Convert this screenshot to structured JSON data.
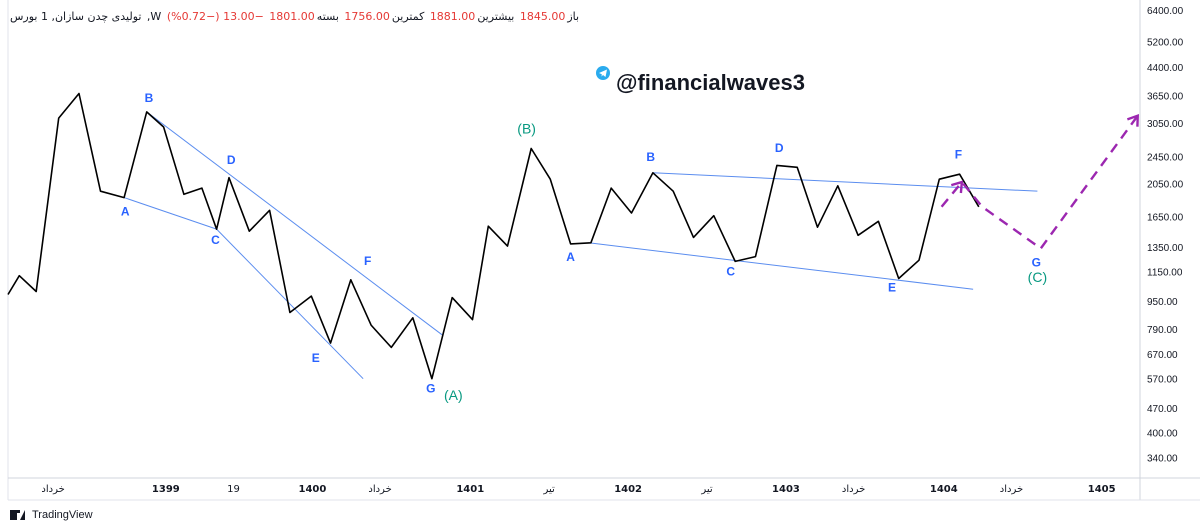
{
  "header": {
    "symbol": "تولیدی چدن سازان, 1",
    "exchange": "بورس ,W",
    "open_label": "باز",
    "open_value": "1845.00",
    "high_label": "بیشترین",
    "high_value": "1881.00",
    "low_label": "کمترین",
    "low_value": "1756.00",
    "close_label": "بسته",
    "close_value": "1801.00",
    "change": "−13.00 (−0.72%)"
  },
  "watermark": {
    "text": "@financialwaves3",
    "icon": "telegram-icon",
    "color": "#131722"
  },
  "footer": {
    "brand": "TradingView",
    "icon": "tradingview-logo-icon"
  },
  "colors": {
    "price_line": "#000000",
    "trendline": "#5b8def",
    "wave_label_blue": "#2962ff",
    "wave_label_green": "#089981",
    "projection": "#9c27b0",
    "axis_text": "#131722",
    "grid": "#f0f3fa"
  },
  "chart_data": {
    "type": "line",
    "scale": "log",
    "ylim": [
      300,
      6400
    ],
    "y_ticks": [
      340,
      400,
      470,
      570,
      670,
      790,
      950,
      1150,
      1350,
      1650,
      2050,
      2450,
      3050,
      3650,
      4400,
      5200,
      6400
    ],
    "y_tick_labels": [
      "340.00",
      "400.00",
      "470.00",
      "570.00",
      "670.00",
      "790.00",
      "950.00",
      "1150.00",
      "1350.00",
      "1650.00",
      "2050.00",
      "2450.00",
      "3050.00",
      "3650.00",
      "4400.00",
      "5200.00",
      "6400.00"
    ],
    "x_ticks": [
      {
        "label": "خرداد",
        "t": 4,
        "bold": false
      },
      {
        "label": "1399",
        "t": 14,
        "bold": true
      },
      {
        "label": "19",
        "t": 20,
        "bold": false
      },
      {
        "label": "1400",
        "t": 27,
        "bold": true
      },
      {
        "label": "خرداد",
        "t": 33,
        "bold": false
      },
      {
        "label": "1401",
        "t": 41,
        "bold": true
      },
      {
        "label": "تیر",
        "t": 48,
        "bold": false
      },
      {
        "label": "1402",
        "t": 55,
        "bold": true
      },
      {
        "label": "تیر",
        "t": 62,
        "bold": false
      },
      {
        "label": "1403",
        "t": 69,
        "bold": true
      },
      {
        "label": "خرداد",
        "t": 75,
        "bold": false
      },
      {
        "label": "1404",
        "t": 83,
        "bold": true
      },
      {
        "label": "خرداد",
        "t": 89,
        "bold": false
      },
      {
        "label": "1405",
        "t": 97,
        "bold": true
      }
    ],
    "series": [
      {
        "type": "line",
        "points": [
          [
            0,
            990
          ],
          [
            1,
            1120
          ],
          [
            2.5,
            1010
          ],
          [
            4.5,
            3150
          ],
          [
            6.3,
            3700
          ],
          [
            8.2,
            1950
          ],
          [
            10.3,
            1870
          ],
          [
            12.3,
            3280
          ],
          [
            13.8,
            2970
          ],
          [
            15.6,
            1910
          ],
          [
            17.2,
            1990
          ],
          [
            18.5,
            1520
          ],
          [
            19.6,
            2130
          ],
          [
            21.4,
            1500
          ],
          [
            23.2,
            1720
          ],
          [
            25,
            880
          ],
          [
            26.9,
            980
          ],
          [
            28.6,
            720
          ],
          [
            30.4,
            1090
          ],
          [
            32.2,
            810
          ],
          [
            34,
            700
          ],
          [
            35.9,
            850
          ],
          [
            37.6,
            570
          ],
          [
            39.4,
            970
          ],
          [
            41.2,
            840
          ],
          [
            42.6,
            1550
          ],
          [
            44.3,
            1360
          ],
          [
            46.4,
            2580
          ],
          [
            48.1,
            2110
          ],
          [
            49.9,
            1380
          ],
          [
            51.7,
            1390
          ],
          [
            53.5,
            1990
          ],
          [
            55.3,
            1690
          ],
          [
            57.2,
            2200
          ],
          [
            59,
            1950
          ],
          [
            60.8,
            1440
          ],
          [
            62.6,
            1660
          ],
          [
            64.5,
            1230
          ],
          [
            66.3,
            1270
          ],
          [
            68.2,
            2310
          ],
          [
            70,
            2280
          ],
          [
            71.8,
            1540
          ],
          [
            73.6,
            2020
          ],
          [
            75.4,
            1460
          ],
          [
            77.2,
            1600
          ],
          [
            79,
            1100
          ],
          [
            80.8,
            1240
          ],
          [
            82.6,
            2110
          ],
          [
            84.4,
            2180
          ],
          [
            86.1,
            1760
          ]
        ]
      },
      {
        "type": "projection",
        "points": [
          [
            82.8,
            1760
          ],
          [
            84.6,
            2070
          ],
          [
            86.4,
            1760
          ],
          [
            91.6,
            1340
          ],
          [
            100.2,
            3200
          ]
        ]
      }
    ],
    "trendlines": [
      [
        [
          12.3,
          3280
        ],
        [
          38.5,
          760
        ]
      ],
      [
        [
          10.3,
          1870
        ],
        [
          18.5,
          1520
        ]
      ],
      [
        [
          18.5,
          1520
        ],
        [
          31.5,
          570
        ]
      ],
      [
        [
          51.5,
          1390
        ],
        [
          85.6,
          1025
        ]
      ],
      [
        [
          57.2,
          2200
        ],
        [
          91.3,
          1950
        ]
      ]
    ],
    "wave_labels": [
      {
        "text": "B",
        "t": 12.5,
        "v": 3500,
        "color": "blue"
      },
      {
        "text": "A",
        "t": 10.4,
        "v": 1660,
        "color": "blue"
      },
      {
        "text": "D",
        "t": 19.8,
        "v": 2330,
        "color": "blue"
      },
      {
        "text": "C",
        "t": 18.4,
        "v": 1380,
        "color": "blue"
      },
      {
        "text": "F",
        "t": 31.9,
        "v": 1200,
        "color": "blue"
      },
      {
        "text": "E",
        "t": 27.3,
        "v": 635,
        "color": "blue"
      },
      {
        "text": "G",
        "t": 37.5,
        "v": 520,
        "color": "blue"
      },
      {
        "text": "(A)",
        "t": 39.5,
        "v": 495,
        "color": "green"
      },
      {
        "text": "(B)",
        "t": 46.0,
        "v": 2850,
        "color": "green"
      },
      {
        "text": "A",
        "t": 49.9,
        "v": 1235,
        "color": "blue"
      },
      {
        "text": "B",
        "t": 57.0,
        "v": 2380,
        "color": "blue"
      },
      {
        "text": "C",
        "t": 64.1,
        "v": 1120,
        "color": "blue"
      },
      {
        "text": "D",
        "t": 68.4,
        "v": 2520,
        "color": "blue"
      },
      {
        "text": "E",
        "t": 78.4,
        "v": 1010,
        "color": "blue"
      },
      {
        "text": "F",
        "t": 84.3,
        "v": 2420,
        "color": "blue"
      },
      {
        "text": "G",
        "t": 91.2,
        "v": 1190,
        "color": "blue"
      },
      {
        "text": "(C)",
        "t": 91.3,
        "v": 1075,
        "color": "green"
      }
    ]
  }
}
